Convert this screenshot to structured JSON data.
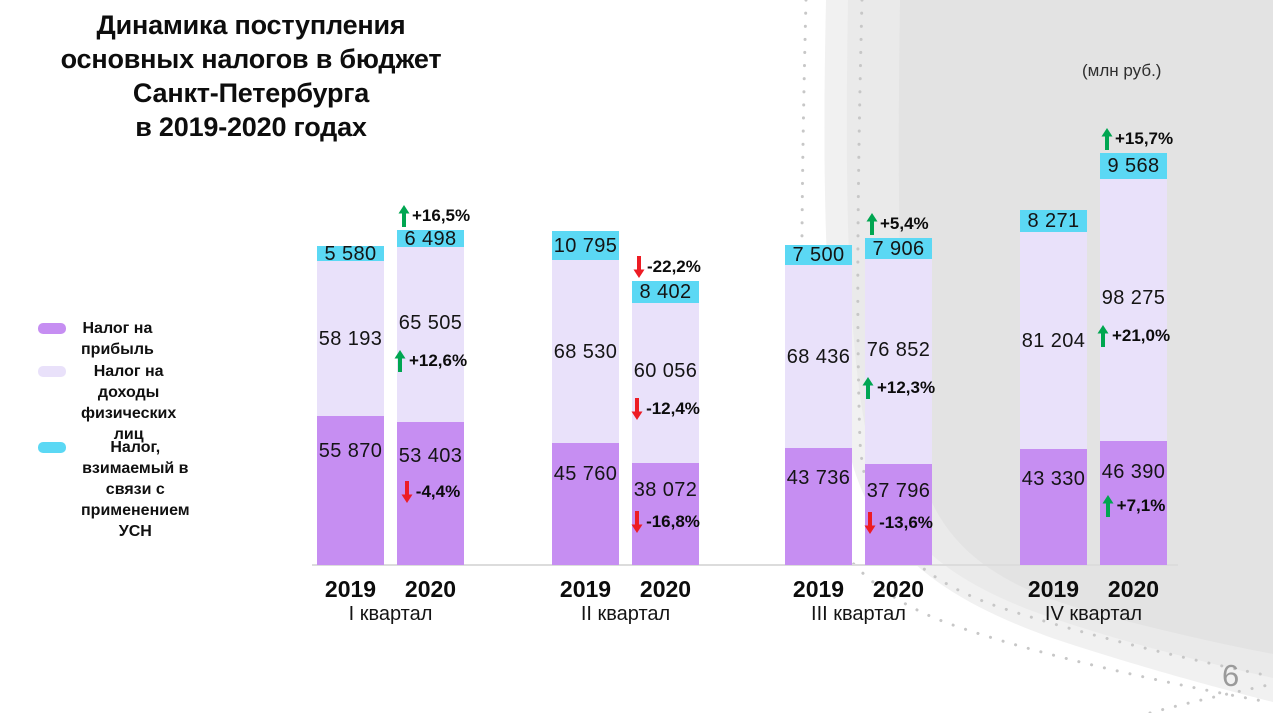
{
  "title": "Динамика поступления\nосновных налогов в бюджет\nСанкт-Петербурга\nв 2019-2020 годах",
  "unit_label": "(млн руб.)",
  "page_number": "6",
  "legend": {
    "items": [
      {
        "id": "profit",
        "label": "Налог на прибыль",
        "color": "#c68ef2"
      },
      {
        "id": "ndfl",
        "label": "Налог на доходы\nфизических лиц",
        "color": "#e9e1fa"
      },
      {
        "id": "usn",
        "label": "Налог, взимаемый в\nсвязи с применением\nУСН",
        "color": "#5bd8f4"
      }
    ]
  },
  "chart_data": {
    "type": "bar",
    "stacked": true,
    "title": "Динамика поступления основных налогов в бюджет Санкт-Петербурга в 2019-2020 годах",
    "unit": "млн руб.",
    "series_labels": {
      "profit": "Налог на прибыль",
      "ndfl": "Налог на доходы физических лиц",
      "usn": "Налог, взимаемый в связи с применением УСН"
    },
    "series_colors": {
      "profit": "#c68ef2",
      "ndfl": "#e9e1fa",
      "usn": "#5bd8f4"
    },
    "arrow_colors": {
      "up": "#00a651",
      "down": "#ed1c24"
    },
    "stack_order_bottom_to_top": [
      "profit",
      "ndfl",
      "usn"
    ],
    "quarters": [
      {
        "label": "I квартал",
        "bars": [
          {
            "year": "2019",
            "values": {
              "profit": 55870,
              "ndfl": 58193,
              "usn": 5580
            }
          },
          {
            "year": "2020",
            "values": {
              "profit": 53403,
              "ndfl": 65505,
              "usn": 6498
            },
            "changes": {
              "profit": {
                "text": "-4,4%",
                "dir": "down"
              },
              "ndfl": {
                "text": "+12,6%",
                "dir": "up"
              },
              "usn": {
                "text": "+16,5%",
                "dir": "up"
              }
            }
          }
        ]
      },
      {
        "label": "II квартал",
        "bars": [
          {
            "year": "2019",
            "values": {
              "profit": 45760,
              "ndfl": 68530,
              "usn": 10795
            }
          },
          {
            "year": "2020",
            "values": {
              "profit": 38072,
              "ndfl": 60056,
              "usn": 8402
            },
            "changes": {
              "profit": {
                "text": "-16,8%",
                "dir": "down"
              },
              "ndfl": {
                "text": "-12,4%",
                "dir": "down"
              },
              "usn": {
                "text": "-22,2%",
                "dir": "down"
              }
            }
          }
        ]
      },
      {
        "label": "III квартал",
        "bars": [
          {
            "year": "2019",
            "values": {
              "profit": 43736,
              "ndfl": 68436,
              "usn": 7500
            }
          },
          {
            "year": "2020",
            "values": {
              "profit": 37796,
              "ndfl": 76852,
              "usn": 7906
            },
            "changes": {
              "profit": {
                "text": "-13,6%",
                "dir": "down"
              },
              "ndfl": {
                "text": "+12,3%",
                "dir": "up"
              },
              "usn": {
                "text": "+5,4%",
                "dir": "up"
              }
            }
          }
        ]
      },
      {
        "label": "IV квартал",
        "bars": [
          {
            "year": "2019",
            "values": {
              "profit": 43330,
              "ndfl": 81204,
              "usn": 8271
            }
          },
          {
            "year": "2020",
            "values": {
              "profit": 46390,
              "ndfl": 98275,
              "usn": 9568
            },
            "changes": {
              "profit": {
                "text": "+7,1%",
                "dir": "up"
              },
              "ndfl": {
                "text": "+21,0%",
                "dir": "up"
              },
              "usn": {
                "text": "+15,7%",
                "dir": "up"
              }
            }
          }
        ]
      }
    ]
  }
}
